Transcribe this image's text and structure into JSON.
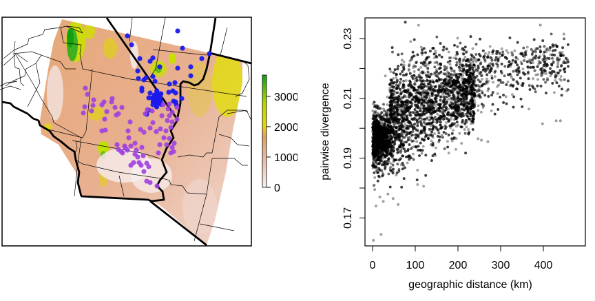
{
  "figure": {
    "left_panel": {
      "kind": "elevation map with sample points",
      "colorbar": {
        "ticks": [
          "0",
          "1000",
          "2000",
          "3000"
        ],
        "tick_values": [
          0,
          1000,
          2000,
          3000
        ],
        "max_value": 3700,
        "colors": [
          "#f7f0f0",
          "#e8b8a0",
          "#e0a060",
          "#e8d800",
          "#c8e000",
          "#10a010"
        ]
      },
      "point_colors": {
        "group_a": "#1a1aee",
        "group_b": "#a040e0"
      },
      "point_groups": [
        {
          "name": "group_a",
          "color": "#1a1aee"
        },
        {
          "name": "group_b",
          "color": "#a040e0"
        }
      ]
    },
    "right_panel": {
      "xlabel": "geographic distance (km)",
      "ylabel": "pairwise divergence"
    }
  },
  "chart_data": [
    {
      "type": "map",
      "title": "",
      "legend": {
        "type": "colorbar",
        "position": "right",
        "ticks": [
          0,
          1000,
          2000,
          3000
        ],
        "range": [
          0,
          3700
        ]
      },
      "series": [
        {
          "name": "blue samples",
          "color": "#1a1aee",
          "approx_count": 60
        },
        {
          "name": "purple samples",
          "color": "#a040e0",
          "approx_count": 80
        }
      ]
    },
    {
      "type": "scatter",
      "title": "",
      "xlabel": "geographic distance (km)",
      "ylabel": "pairwise divergence",
      "xlim": [
        -18,
        460
      ],
      "ylim": [
        0.16,
        0.236
      ],
      "xticks": [
        0,
        100,
        200,
        300,
        400
      ],
      "yticks": [
        0.17,
        0.18,
        0.19,
        0.2,
        0.21,
        0.22,
        0.23
      ],
      "ytick_labels": [
        "0.17",
        "",
        "0.19",
        "",
        "0.21",
        "",
        "0.23"
      ],
      "grid": false,
      "point_style": {
        "color": "#000000",
        "alpha": 0.35,
        "radius": 1.8
      },
      "density_trend": [
        {
          "x": 0,
          "y_low": 0.186,
          "y_high": 0.205
        },
        {
          "x": 50,
          "y_low": 0.187,
          "y_high": 0.218
        },
        {
          "x": 100,
          "y_low": 0.192,
          "y_high": 0.222
        },
        {
          "x": 150,
          "y_low": 0.196,
          "y_high": 0.223
        },
        {
          "x": 200,
          "y_low": 0.199,
          "y_high": 0.224
        },
        {
          "x": 250,
          "y_low": 0.203,
          "y_high": 0.225
        },
        {
          "x": 300,
          "y_low": 0.207,
          "y_high": 0.226
        },
        {
          "x": 350,
          "y_low": 0.21,
          "y_high": 0.227
        },
        {
          "x": 400,
          "y_low": 0.212,
          "y_high": 0.228
        }
      ],
      "outliers": [
        {
          "x": 2,
          "y": 0.1625
        },
        {
          "x": 20,
          "y": 0.1645
        },
        {
          "x": 8,
          "y": 0.174
        },
        {
          "x": 25,
          "y": 0.1755
        },
        {
          "x": 48,
          "y": 0.1765
        },
        {
          "x": 60,
          "y": 0.1745
        },
        {
          "x": 5,
          "y": 0.1795
        },
        {
          "x": 17,
          "y": 0.177
        },
        {
          "x": 36,
          "y": 0.178
        },
        {
          "x": 183,
          "y": 0.201
        },
        {
          "x": 247,
          "y": 0.1965
        },
        {
          "x": 255,
          "y": 0.196
        },
        {
          "x": 270,
          "y": 0.1955
        },
        {
          "x": 398,
          "y": 0.2015
        },
        {
          "x": 430,
          "y": 0.2025
        },
        {
          "x": 440,
          "y": 0.2025
        },
        {
          "x": 393,
          "y": 0.2345
        },
        {
          "x": 448,
          "y": 0.2315
        },
        {
          "x": 455,
          "y": 0.2125
        },
        {
          "x": 436,
          "y": 0.2185
        },
        {
          "x": 30,
          "y": 0.2175
        }
      ]
    }
  ]
}
